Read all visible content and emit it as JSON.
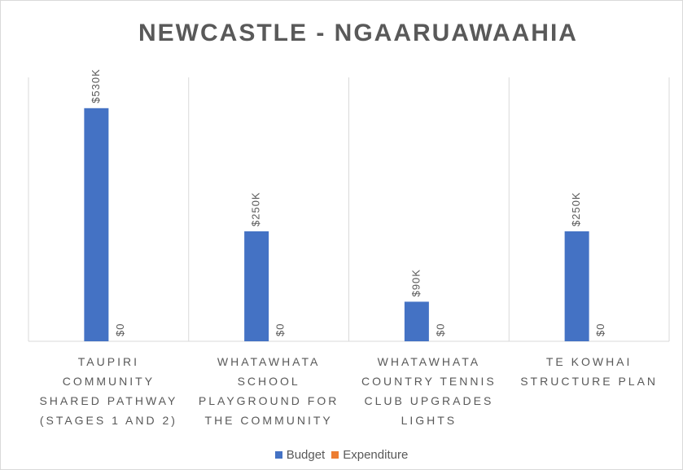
{
  "chart_data": {
    "type": "bar",
    "title": "NEWCASTLE  - NGAARUAWAAHIA",
    "categories": [
      "TAUPIRI COMMUNITY SHARED PATHWAY (STAGES 1 AND 2)",
      "WHATAWHATA SCHOOL PLAYGROUND FOR THE COMMUNITY",
      "WHATAWHATA COUNTRY TENNIS CLUB UPGRADES LIGHTS",
      "TE KOWHAI STRUCTURE PLAN"
    ],
    "series": [
      {
        "name": "Budget",
        "color": "#4472c4",
        "values": [
          530,
          250,
          90,
          250
        ],
        "value_labels": [
          "$530K",
          "$250K",
          "$90K",
          "$250K"
        ]
      },
      {
        "name": "Expenditure",
        "color": "#ed7d31",
        "values": [
          0,
          0,
          0,
          0
        ],
        "value_labels": [
          "$0",
          "$0",
          "$0",
          "$0"
        ]
      }
    ],
    "ylim": [
      0,
      600
    ],
    "legend": "bottom"
  }
}
